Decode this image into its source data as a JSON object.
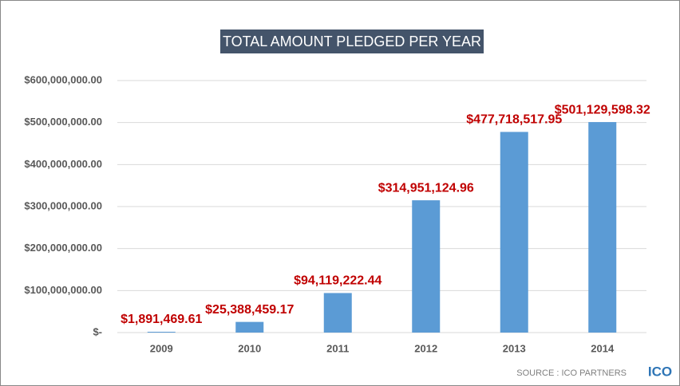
{
  "chart_data": {
    "type": "bar",
    "title": "TOTAL AMOUNT PLEDGED PER YEAR",
    "categories": [
      "2009",
      "2010",
      "2011",
      "2012",
      "2013",
      "2014"
    ],
    "values": [
      1891469.61,
      25388459.17,
      94119222.44,
      314951124.96,
      477718517.95,
      501129598.32
    ],
    "value_labels": [
      "$1,891,469.61",
      "$25,388,459.17",
      "$94,119,222.44",
      "$314,951,124.96",
      "$477,718,517.95",
      "$501,129,598.32"
    ],
    "color": "#5b9bd5",
    "label_color": "#c00000",
    "ylim": [
      0,
      600000000
    ],
    "yticks": [
      {
        "value": 0,
        "label": "$-"
      },
      {
        "value": 100000000,
        "label": "$100,000,000.00"
      },
      {
        "value": 200000000,
        "label": "$200,000,000.00"
      },
      {
        "value": 300000000,
        "label": "$300,000,000.00"
      },
      {
        "value": 400000000,
        "label": "$400,000,000.00"
      },
      {
        "value": 500000000,
        "label": "$500,000,000.00"
      },
      {
        "value": 600000000,
        "label": "$600,000,000.00"
      }
    ],
    "grid": true,
    "source": "SOURCE : ICO PARTNERS",
    "logo": "ICO"
  }
}
